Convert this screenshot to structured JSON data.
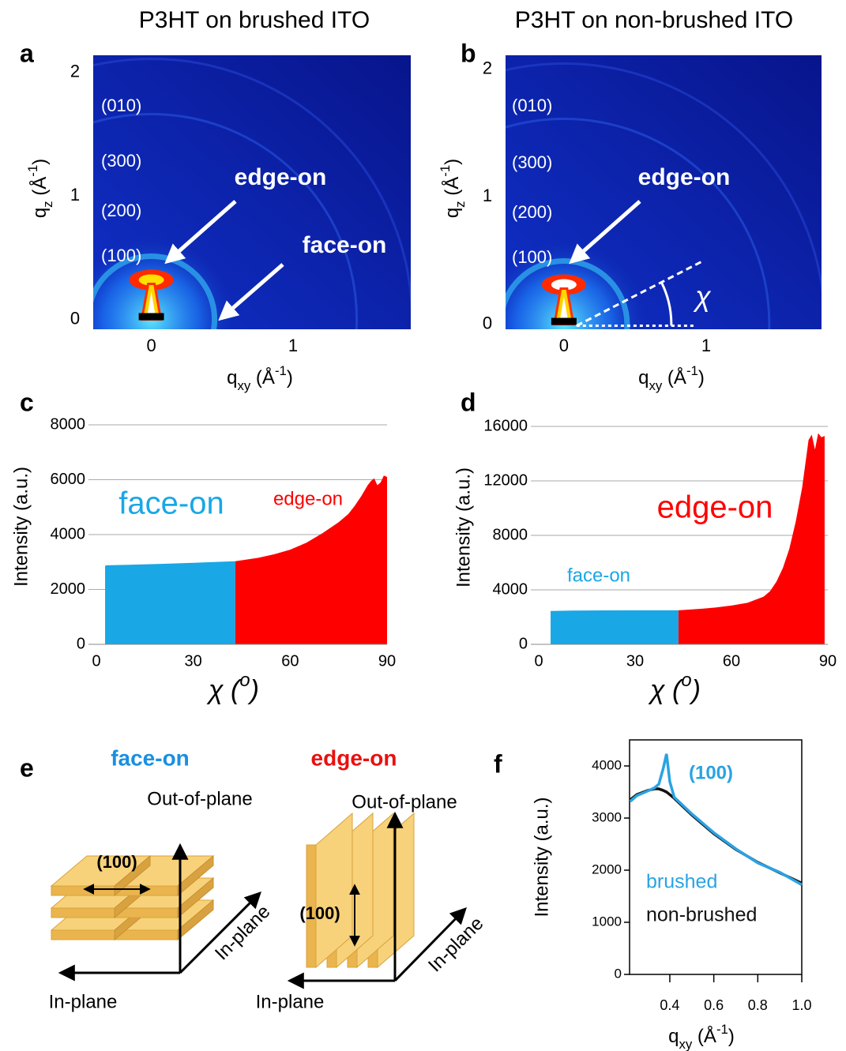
{
  "chart_data": [
    {
      "panel": "a",
      "type": "heatmap",
      "title": "P3HT on brushed ITO",
      "xlabel": [
        "q",
        "xy",
        " (Å",
        "-1",
        ")"
      ],
      "ylabel": [
        "q",
        "z",
        " (Å",
        "-1",
        ")"
      ],
      "xlim": [
        -0.41,
        1.83
      ],
      "ylim": [
        -0.08,
        2.14
      ],
      "xticks": [
        0,
        1
      ],
      "yticks": [
        0,
        1,
        2
      ],
      "annotations": [
        "(010)",
        "(300)",
        "(200)",
        "(100)",
        "edge-on",
        "face-on"
      ]
    },
    {
      "panel": "b",
      "type": "heatmap",
      "title": "P3HT on non-brushed ITO",
      "xlabel": [
        "q",
        "xy",
        " (Å",
        "-1",
        ")"
      ],
      "ylabel": [
        "q",
        "z",
        " (Å",
        "-1",
        ")"
      ],
      "xlim": [
        -0.41,
        1.81
      ],
      "ylim": [
        -0.04,
        2.11
      ],
      "xticks": [
        0,
        1
      ],
      "yticks": [
        0,
        1,
        2
      ],
      "annotations": [
        "(010)",
        "(300)",
        "(200)",
        "(100)",
        "edge-on",
        "χ"
      ]
    },
    {
      "panel": "c",
      "type": "area",
      "xlabel": [
        "χ",
        " (",
        "o",
        ")"
      ],
      "ylabel": "Intensity (a.u.)",
      "xlim": [
        0,
        90
      ],
      "ylim": [
        0,
        8000
      ],
      "xticks": [
        0,
        30,
        60,
        90
      ],
      "yticks": [
        0,
        2000,
        4000,
        6000,
        8000
      ],
      "grid": true,
      "series": [
        {
          "name": "face-on",
          "color": "#19a7e6",
          "x": [
            2.7,
            3,
            10,
            20,
            30,
            43
          ],
          "values": [
            2850,
            2880,
            2900,
            2930,
            2970,
            3030
          ]
        },
        {
          "name": "edge-on",
          "color": "#ff0000",
          "x": [
            43,
            50,
            55,
            60,
            65,
            70,
            75,
            78,
            80,
            82,
            84,
            85,
            86,
            87,
            88,
            89,
            90
          ],
          "values": [
            3030,
            3150,
            3280,
            3450,
            3700,
            4050,
            4450,
            4750,
            5050,
            5400,
            5800,
            5950,
            6050,
            5800,
            5900,
            6150,
            6100
          ]
        }
      ]
    },
    {
      "panel": "d",
      "type": "area",
      "xlabel": [
        "χ",
        " (",
        "o",
        ")"
      ],
      "ylabel": "Intensity (a.u.)",
      "xlim": [
        0,
        90
      ],
      "ylim": [
        0,
        16000
      ],
      "xticks": [
        0,
        30,
        60,
        90
      ],
      "yticks": [
        0,
        4000,
        8000,
        12000,
        16000
      ],
      "grid": true,
      "series": [
        {
          "name": "face-on",
          "color": "#19a7e6",
          "x": [
            3.7,
            10,
            20,
            30,
            43.5
          ],
          "values": [
            2450,
            2480,
            2490,
            2500,
            2500
          ]
        },
        {
          "name": "edge-on",
          "color": "#ff0000",
          "x": [
            43.5,
            50,
            55,
            60,
            65,
            70,
            72,
            74,
            76,
            78,
            80,
            82,
            84,
            85,
            86,
            87,
            88,
            89
          ],
          "values": [
            2500,
            2600,
            2700,
            2850,
            3050,
            3500,
            3900,
            4600,
            5600,
            7000,
            9000,
            11500,
            15000,
            15400,
            14300,
            15500,
            15200,
            15300
          ]
        }
      ]
    },
    {
      "panel": "f",
      "type": "line",
      "xlabel": [
        "q",
        "xy",
        " (Å",
        "-1",
        ")"
      ],
      "ylabel": "Intensity (a.u.)",
      "xlim": [
        0.217,
        1
      ],
      "ylim": [
        0,
        4500
      ],
      "xticks": [
        0.4,
        0.6,
        0.8,
        {
          "value": 1,
          "label": "1.0"
        }
      ],
      "yticks": [
        0,
        1000,
        2000,
        3000,
        4000
      ],
      "annotations": [
        "(100)"
      ],
      "x": [
        0.22,
        0.25,
        0.3,
        0.33,
        0.35,
        0.37,
        0.385,
        0.4,
        0.42,
        0.45,
        0.5,
        0.6,
        0.7,
        0.8,
        0.9,
        1.0
      ],
      "series": [
        {
          "name": "brushed",
          "color": "#2aa3e3",
          "values": [
            3320,
            3430,
            3520,
            3580,
            3650,
            3950,
            4230,
            3700,
            3400,
            3280,
            3080,
            2720,
            2410,
            2140,
            1960,
            1720
          ]
        },
        {
          "name": "non-brushed",
          "color": "#111111",
          "values": [
            3350,
            3450,
            3530,
            3560,
            3560,
            3530,
            3500,
            3450,
            3380,
            3260,
            3060,
            2700,
            2400,
            2150,
            1950,
            1750
          ]
        }
      ]
    }
  ],
  "diagram": {
    "panel": "e",
    "face_on": {
      "title": "face-on",
      "vertical_axis": "Out-of-plane",
      "depth_axis": "In-plane",
      "horizontal_axis": "In-plane",
      "spacing": "(100)"
    },
    "edge_on": {
      "title": "edge-on",
      "vertical_axis": "Out-of-plane",
      "depth_axis": "In-plane",
      "horizontal_axis": "In-plane",
      "spacing": "(100)"
    }
  }
}
